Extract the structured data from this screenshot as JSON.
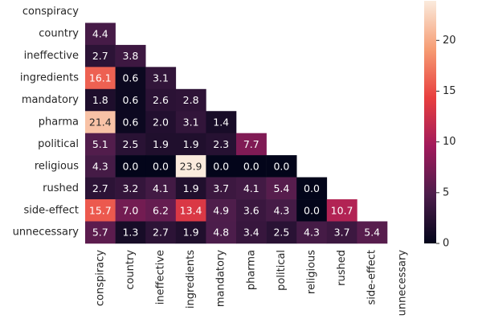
{
  "chart_data": {
    "type": "heatmap",
    "x_categories": [
      "conspiracy",
      "country",
      "ineffective",
      "ingredients",
      "mandatory",
      "pharma",
      "political",
      "religious",
      "rushed",
      "side-effect",
      "unnecessary"
    ],
    "y_categories": [
      "conspiracy",
      "country",
      "ineffective",
      "ingredients",
      "mandatory",
      "pharma",
      "political",
      "religious",
      "rushed",
      "side-effect",
      "unnecessary"
    ],
    "z": [
      [
        null,
        null,
        null,
        null,
        null,
        null,
        null,
        null,
        null,
        null,
        null
      ],
      [
        4.4,
        null,
        null,
        null,
        null,
        null,
        null,
        null,
        null,
        null,
        null
      ],
      [
        2.7,
        3.8,
        null,
        null,
        null,
        null,
        null,
        null,
        null,
        null,
        null
      ],
      [
        16.1,
        0.6,
        3.1,
        null,
        null,
        null,
        null,
        null,
        null,
        null,
        null
      ],
      [
        1.8,
        0.6,
        2.6,
        2.8,
        null,
        null,
        null,
        null,
        null,
        null,
        null
      ],
      [
        21.4,
        0.6,
        2.0,
        3.1,
        1.4,
        null,
        null,
        null,
        null,
        null,
        null
      ],
      [
        5.1,
        2.5,
        1.9,
        1.9,
        2.3,
        7.7,
        null,
        null,
        null,
        null,
        null
      ],
      [
        4.3,
        0.0,
        0.0,
        23.9,
        0.0,
        0.0,
        0.0,
        null,
        null,
        null,
        null
      ],
      [
        2.7,
        3.2,
        4.1,
        1.9,
        3.7,
        4.1,
        5.4,
        0.0,
        null,
        null,
        null
      ],
      [
        15.7,
        7.0,
        6.2,
        13.4,
        4.9,
        3.6,
        4.3,
        0.0,
        10.7,
        null,
        null
      ],
      [
        5.7,
        1.3,
        2.7,
        1.9,
        4.8,
        3.4,
        2.5,
        4.3,
        3.7,
        5.4,
        null
      ]
    ],
    "value_labels": [
      [
        null,
        null,
        null,
        null,
        null,
        null,
        null,
        null,
        null,
        null,
        null
      ],
      [
        "4.4",
        null,
        null,
        null,
        null,
        null,
        null,
        null,
        null,
        null,
        null
      ],
      [
        "2.7",
        "3.8",
        null,
        null,
        null,
        null,
        null,
        null,
        null,
        null,
        null
      ],
      [
        "16.1",
        "0.6",
        "3.1",
        null,
        null,
        null,
        null,
        null,
        null,
        null,
        null
      ],
      [
        "1.8",
        "0.6",
        "2.6",
        "2.8",
        null,
        null,
        null,
        null,
        null,
        null,
        null
      ],
      [
        "21.4",
        "0.6",
        "2.0",
        "3.1",
        "1.4",
        null,
        null,
        null,
        null,
        null,
        null
      ],
      [
        "5.1",
        "2.5",
        "1.9",
        "1.9",
        "2.3",
        "7.7",
        null,
        null,
        null,
        null,
        null
      ],
      [
        "4.3",
        "0.0",
        "0.0",
        "23.9",
        "0.0",
        "0.0",
        "0.0",
        null,
        null,
        null,
        null
      ],
      [
        "2.7",
        "3.2",
        "4.1",
        "1.9",
        "3.7",
        "4.1",
        "5.4",
        "0.0",
        null,
        null,
        null
      ],
      [
        "15.7",
        "7.0",
        "6.2",
        "13.4",
        "4.9",
        "3.6",
        "4.3",
        "0.0",
        "10.7",
        null,
        null
      ],
      [
        "5.7",
        "1.3",
        "2.7",
        "1.9",
        "4.8",
        "3.4",
        "2.5",
        "4.3",
        "3.7",
        "5.4",
        null
      ]
    ],
    "colormap": "rocket",
    "zlim": [
      0,
      23.9
    ],
    "zticks": [
      0,
      5,
      10,
      15,
      20
    ]
  }
}
